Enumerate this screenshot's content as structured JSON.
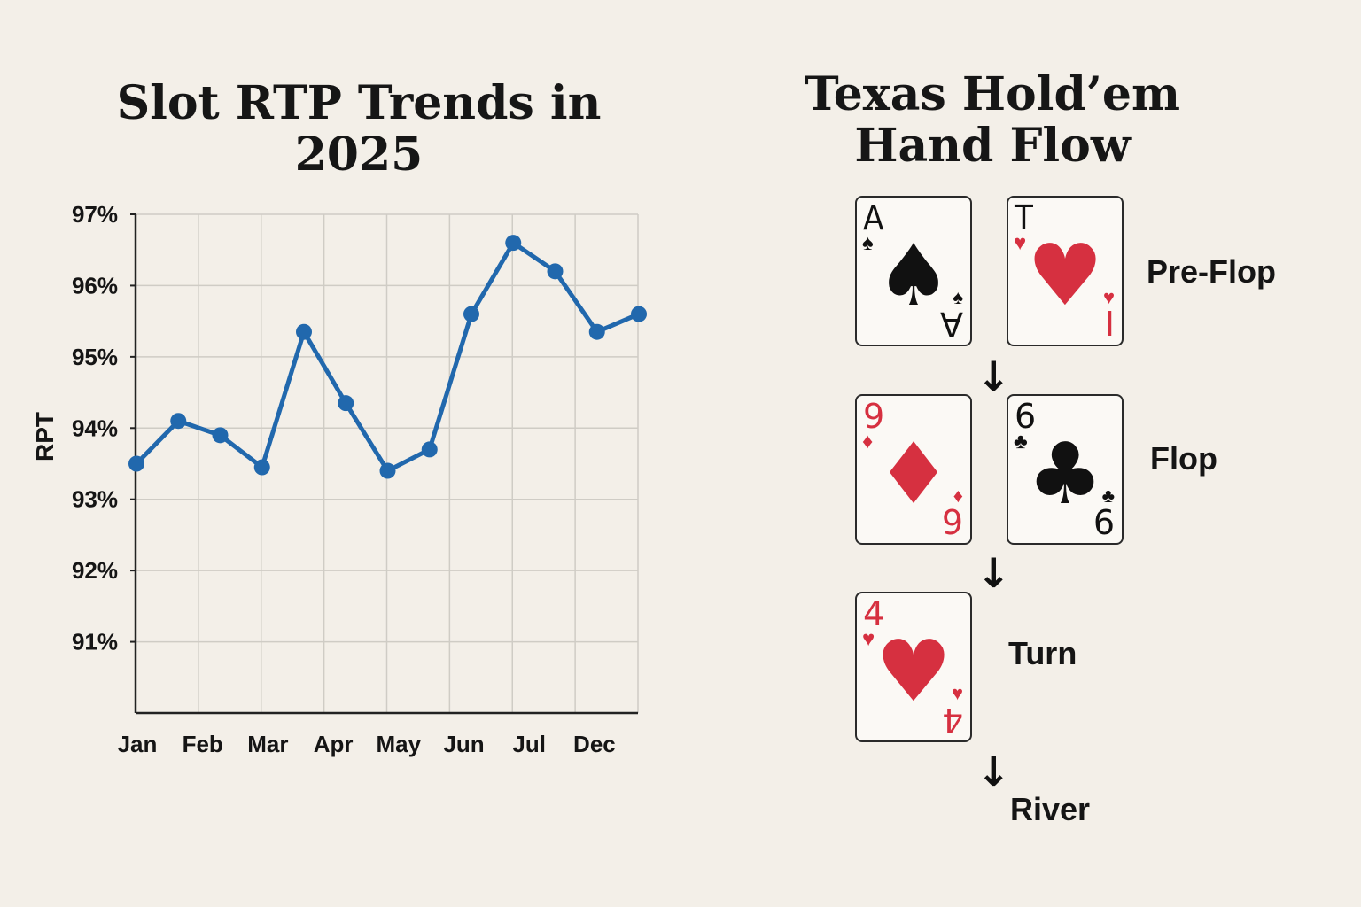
{
  "chart_data": {
    "type": "line",
    "title": "Slot RTP Trends in 2025",
    "ylabel": "RPT",
    "xlabel": "",
    "ylim": [
      90.0,
      97.0
    ],
    "yticks": [
      "97%",
      "96%",
      "95%",
      "94%",
      "93%",
      "92%",
      "91%"
    ],
    "ytick_values": [
      97,
      96,
      95,
      94,
      93,
      92,
      91
    ],
    "x_tick_labels": [
      "Jan",
      "Feb",
      "Mar",
      "Apr",
      "May",
      "Jun",
      "Jul",
      "Dec"
    ],
    "grid": true,
    "color": "#2168ad",
    "series": [
      {
        "values": [
          93.5,
          94.1,
          93.9,
          93.45,
          95.35,
          94.35,
          93.4,
          93.7,
          95.6,
          96.6,
          96.2,
          95.35,
          95.6
        ]
      }
    ]
  },
  "flow": {
    "title": "Texas Hold’em Hand Flow",
    "stages": [
      "Pre-Flop",
      "Flop",
      "Turn",
      "River"
    ],
    "cards": [
      {
        "rank": "A",
        "rank_bottom": "A",
        "suit": "♠",
        "color": "#111111"
      },
      {
        "rank": "T",
        "rank_bottom": "I",
        "suit": "♥",
        "color": "#d63040"
      },
      {
        "rank": "9",
        "rank_bottom": "9",
        "suit": "♦",
        "color": "#d63040"
      },
      {
        "rank": "6",
        "rank_bottom": "6",
        "suit": "♣",
        "color": "#111111"
      },
      {
        "rank": "4",
        "rank_bottom": "4",
        "suit": "♥",
        "color": "#d63040"
      }
    ],
    "arrow_glyph": "↓"
  }
}
